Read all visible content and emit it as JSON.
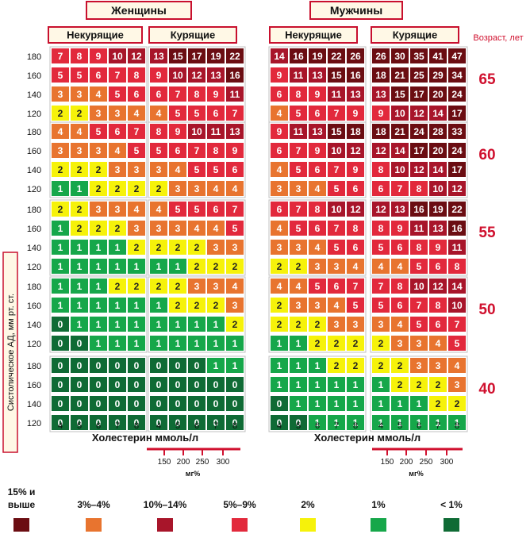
{
  "chart_data": {
    "type": "heatmap",
    "groups": {
      "women": "Женщины",
      "men": "Мужчины"
    },
    "smoking": {
      "nonsmoking": "Некурящие",
      "smoking": "Курящие"
    },
    "age_title": "Возраст, лет",
    "ages": [
      "65",
      "60",
      "55",
      "50",
      "40"
    ],
    "y_label": "Систолическое АД, мм рт. ст.",
    "bp_levels": [
      "180",
      "160",
      "140",
      "120"
    ],
    "chol_levels": [
      "4",
      "5",
      "6",
      "7",
      "8"
    ],
    "x_label": "Холестерин ммоль/л",
    "mg_ticks": [
      "150",
      "200",
      "250",
      "300"
    ],
    "mg_unit": "мг%",
    "legend": [
      {
        "label": "15% и выше",
        "color": "#6b0d12"
      },
      {
        "label": "3%–4%",
        "color": "#e8742f"
      },
      {
        "label": "10%–14%",
        "color": "#a8152a"
      },
      {
        "label": "5%–9%",
        "color": "#e2293c"
      },
      {
        "label": "2%",
        "color": "#f6f20a"
      },
      {
        "label": "1%",
        "color": "#16a74a"
      },
      {
        "label": "< 1%",
        "color": "#0f6b35"
      }
    ],
    "values": {
      "65": {
        "women_nonsmoking": [
          [
            7,
            8,
            9,
            10,
            12
          ],
          [
            5,
            5,
            6,
            7,
            8
          ],
          [
            3,
            3,
            4,
            5,
            6
          ],
          [
            2,
            2,
            3,
            3,
            4
          ]
        ],
        "women_smoking": [
          [
            13,
            15,
            17,
            19,
            22
          ],
          [
            9,
            10,
            12,
            13,
            16
          ],
          [
            6,
            7,
            8,
            9,
            11
          ],
          [
            4,
            5,
            5,
            6,
            7
          ]
        ],
        "men_nonsmoking": [
          [
            14,
            16,
            19,
            22,
            26
          ],
          [
            9,
            11,
            13,
            15,
            16
          ],
          [
            6,
            8,
            9,
            11,
            13
          ],
          [
            4,
            5,
            6,
            7,
            9
          ]
        ],
        "men_smoking": [
          [
            26,
            30,
            35,
            41,
            47
          ],
          [
            18,
            21,
            25,
            29,
            34
          ],
          [
            13,
            15,
            17,
            20,
            24
          ],
          [
            9,
            10,
            12,
            14,
            17
          ]
        ]
      },
      "60": {
        "women_nonsmoking": [
          [
            4,
            4,
            5,
            6,
            7
          ],
          [
            3,
            3,
            3,
            4,
            5
          ],
          [
            2,
            2,
            2,
            3,
            3
          ],
          [
            1,
            1,
            2,
            2,
            2
          ]
        ],
        "women_smoking": [
          [
            8,
            9,
            10,
            11,
            13
          ],
          [
            5,
            6,
            7,
            8,
            9
          ],
          [
            3,
            4,
            5,
            5,
            6
          ],
          [
            2,
            3,
            3,
            4,
            4
          ]
        ],
        "men_nonsmoking": [
          [
            9,
            11,
            13,
            15,
            18
          ],
          [
            6,
            7,
            9,
            10,
            12
          ],
          [
            4,
            5,
            6,
            7,
            9
          ],
          [
            3,
            3,
            4,
            5,
            6
          ]
        ],
        "men_smoking": [
          [
            18,
            21,
            24,
            28,
            33
          ],
          [
            12,
            14,
            17,
            20,
            24
          ],
          [
            8,
            10,
            12,
            14,
            17
          ],
          [
            6,
            7,
            8,
            10,
            12
          ]
        ]
      },
      "55": {
        "women_nonsmoking": [
          [
            2,
            2,
            3,
            3,
            4
          ],
          [
            1,
            2,
            2,
            2,
            3
          ],
          [
            1,
            1,
            1,
            1,
            2
          ],
          [
            1,
            1,
            1,
            1,
            1
          ]
        ],
        "women_smoking": [
          [
            4,
            5,
            5,
            6,
            7
          ],
          [
            3,
            3,
            4,
            4,
            5
          ],
          [
            2,
            2,
            2,
            3,
            3
          ],
          [
            1,
            1,
            2,
            2,
            2
          ]
        ],
        "men_nonsmoking": [
          [
            6,
            7,
            8,
            10,
            12
          ],
          [
            4,
            5,
            6,
            7,
            8
          ],
          [
            3,
            3,
            4,
            5,
            6
          ],
          [
            2,
            2,
            3,
            3,
            4
          ]
        ],
        "men_smoking": [
          [
            12,
            13,
            16,
            19,
            22
          ],
          [
            8,
            9,
            11,
            13,
            16
          ],
          [
            5,
            6,
            8,
            9,
            11
          ],
          [
            4,
            4,
            5,
            6,
            8
          ]
        ]
      },
      "50": {
        "women_nonsmoking": [
          [
            1,
            1,
            1,
            2,
            2
          ],
          [
            1,
            1,
            1,
            1,
            1
          ],
          [
            0,
            1,
            1,
            1,
            1
          ],
          [
            0,
            0,
            1,
            1,
            1
          ]
        ],
        "women_smoking": [
          [
            2,
            2,
            3,
            3,
            4
          ],
          [
            1,
            2,
            2,
            2,
            3
          ],
          [
            1,
            1,
            1,
            1,
            2
          ],
          [
            1,
            1,
            1,
            1,
            1
          ]
        ],
        "men_nonsmoking": [
          [
            4,
            4,
            5,
            6,
            7
          ],
          [
            2,
            3,
            3,
            4,
            5
          ],
          [
            2,
            2,
            2,
            3,
            3
          ],
          [
            1,
            1,
            2,
            2,
            2
          ]
        ],
        "men_smoking": [
          [
            7,
            8,
            10,
            12,
            14
          ],
          [
            5,
            6,
            7,
            8,
            10
          ],
          [
            3,
            4,
            5,
            6,
            7
          ],
          [
            2,
            3,
            3,
            4,
            5
          ]
        ]
      },
      "40": {
        "women_nonsmoking": [
          [
            0,
            0,
            0,
            0,
            0
          ],
          [
            0,
            0,
            0,
            0,
            0
          ],
          [
            0,
            0,
            0,
            0,
            0
          ],
          [
            0,
            0,
            0,
            0,
            0
          ]
        ],
        "women_smoking": [
          [
            0,
            0,
            0,
            1,
            1
          ],
          [
            0,
            0,
            0,
            0,
            0
          ],
          [
            0,
            0,
            0,
            0,
            0
          ],
          [
            0,
            0,
            0,
            0,
            0
          ]
        ],
        "men_nonsmoking": [
          [
            1,
            1,
            1,
            2,
            2
          ],
          [
            1,
            1,
            1,
            1,
            1
          ],
          [
            0,
            1,
            1,
            1,
            1
          ],
          [
            0,
            0,
            1,
            1,
            1
          ]
        ],
        "men_smoking": [
          [
            2,
            2,
            3,
            3,
            4
          ],
          [
            1,
            2,
            2,
            2,
            3
          ],
          [
            1,
            1,
            1,
            2,
            2
          ],
          [
            1,
            1,
            1,
            1,
            1
          ]
        ]
      }
    }
  }
}
